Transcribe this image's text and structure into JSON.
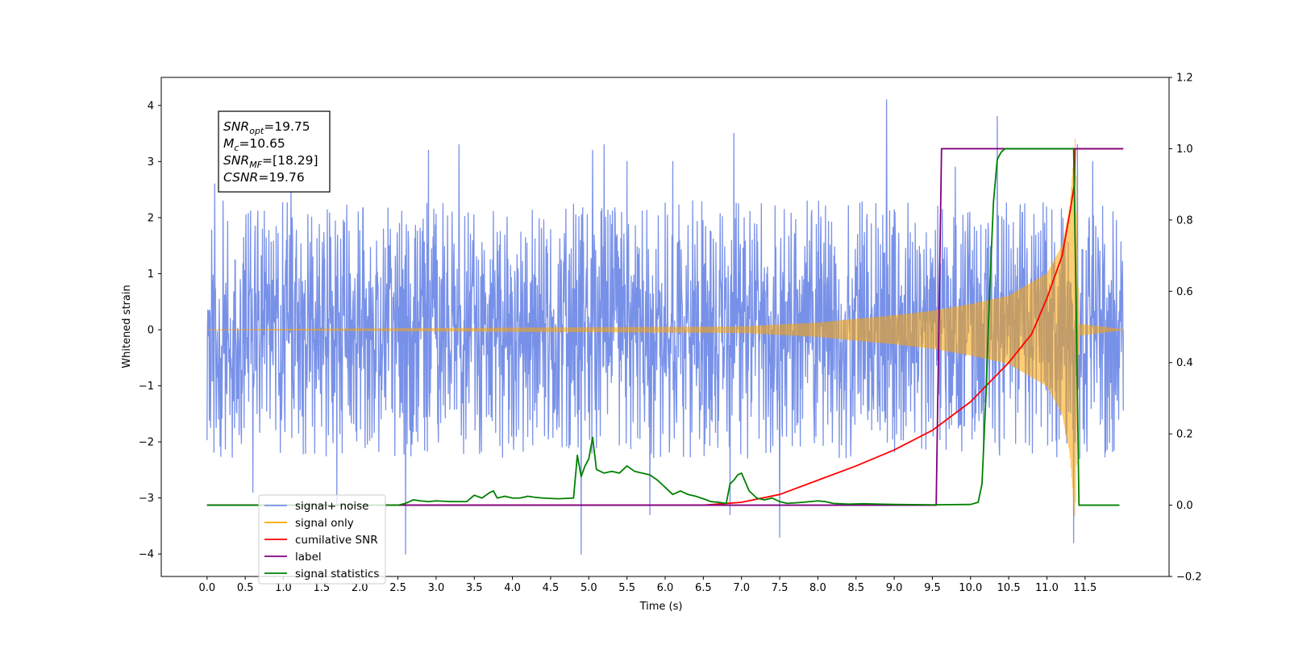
{
  "chart_data": {
    "type": "line",
    "title": "",
    "xlabel": "Time (s)",
    "ylabel": "Whitened strain",
    "ylabel_right": "",
    "xlim": [
      -0.6,
      12.6
    ],
    "ylim": [
      -4.4,
      4.5
    ],
    "ylim_right": [
      -0.2,
      1.2
    ],
    "x_ticks": [
      0.0,
      0.5,
      1.0,
      1.5,
      2.0,
      2.5,
      3.0,
      3.5,
      4.0,
      4.5,
      5.0,
      5.5,
      6.0,
      6.5,
      7.0,
      7.5,
      8.0,
      8.5,
      9.0,
      9.5,
      10.0,
      10.5,
      11.0,
      11.5
    ],
    "x_tick_labels": [
      "0.0",
      "0.5",
      "1.0",
      "1.5",
      "2.0",
      "2.5",
      "3.0",
      "3.5",
      "4.0",
      "4.5",
      "5.0",
      "5.5",
      "6.0",
      "6.5",
      "7.0",
      "7.5",
      "8.0",
      "8.5",
      "9.0",
      "9.5",
      "10.0",
      "10.5",
      "11.0",
      "11.5"
    ],
    "y_ticks": [
      -4,
      -3,
      -2,
      -1,
      0,
      1,
      2,
      3,
      4
    ],
    "y_tick_labels": [
      "−4",
      "−3",
      "−2",
      "−1",
      "0",
      "1",
      "2",
      "3",
      "4"
    ],
    "y_ticks_right": [
      -0.2,
      0.0,
      0.2,
      0.4,
      0.6,
      0.8,
      1.0,
      1.2
    ],
    "y_tick_labels_right": [
      "−0.2",
      "0.0",
      "0.2",
      "0.4",
      "0.6",
      "0.8",
      "1.0",
      "1.2"
    ],
    "grid": false,
    "legend_position": "lower-left",
    "annotation": {
      "lines": [
        {
          "var": "SNR",
          "sub": "opt",
          "value": "=19.75"
        },
        {
          "var": "M",
          "sub": "c",
          "value": "=10.65"
        },
        {
          "var": "SNR",
          "sub": "MF",
          "value": "=[18.29]"
        },
        {
          "var": "CSNR",
          "sub": "",
          "value": "=19.76"
        }
      ]
    },
    "series": [
      {
        "name": "signal+ noise",
        "color": "#7891e8",
        "axis": "left",
        "kind": "noise",
        "x_range": [
          0.0,
          12.0
        ],
        "typical_envelope": 2.2,
        "peaks": [
          {
            "x": 0.1,
            "y": 2.6
          },
          {
            "x": 0.6,
            "y": -2.9
          },
          {
            "x": 1.1,
            "y": 2.6
          },
          {
            "x": 1.7,
            "y": -3.1
          },
          {
            "x": 2.6,
            "y": -4.0
          },
          {
            "x": 2.9,
            "y": 3.2
          },
          {
            "x": 3.3,
            "y": 3.3
          },
          {
            "x": 4.9,
            "y": -4.0
          },
          {
            "x": 5.05,
            "y": 3.2
          },
          {
            "x": 5.2,
            "y": 3.3
          },
          {
            "x": 5.5,
            "y": 3.0
          },
          {
            "x": 5.8,
            "y": -3.3
          },
          {
            "x": 6.1,
            "y": 3.0
          },
          {
            "x": 6.85,
            "y": -3.3
          },
          {
            "x": 6.9,
            "y": 3.5
          },
          {
            "x": 7.5,
            "y": -3.7
          },
          {
            "x": 8.9,
            "y": 4.1
          },
          {
            "x": 9.8,
            "y": 2.9
          },
          {
            "x": 10.35,
            "y": 3.8
          },
          {
            "x": 11.35,
            "y": -3.8
          },
          {
            "x": 11.4,
            "y": 3.3
          },
          {
            "x": 11.6,
            "y": 3.0
          }
        ]
      },
      {
        "name": "signal only",
        "color": "#ffa500",
        "axis": "left",
        "kind": "chirp",
        "amplitude": [
          [
            0.0,
            0.0
          ],
          [
            7.0,
            0.05
          ],
          [
            8.0,
            0.12
          ],
          [
            9.0,
            0.25
          ],
          [
            9.5,
            0.33
          ],
          [
            10.0,
            0.45
          ],
          [
            10.5,
            0.6
          ],
          [
            11.0,
            1.0
          ],
          [
            11.2,
            1.5
          ],
          [
            11.3,
            2.2
          ],
          [
            11.37,
            3.4
          ],
          [
            11.42,
            0.1
          ],
          [
            12.0,
            0.0
          ]
        ]
      },
      {
        "name": "cumilative SNR",
        "color": "#ff0000",
        "axis": "right",
        "x": [
          0.0,
          6.5,
          7.0,
          7.5,
          8.0,
          8.5,
          9.0,
          9.5,
          10.0,
          10.5,
          10.8,
          11.0,
          11.2,
          11.3,
          11.36,
          11.37,
          12.0
        ],
        "y": [
          0.0,
          0.0,
          0.008,
          0.03,
          0.07,
          0.11,
          0.155,
          0.21,
          0.29,
          0.4,
          0.48,
          0.58,
          0.7,
          0.82,
          0.9,
          1.0,
          1.0
        ]
      },
      {
        "name": "label",
        "color": "#800080",
        "axis": "right",
        "x": [
          0.0,
          9.55,
          9.62,
          11.37,
          11.4,
          12.0
        ],
        "y": [
          0.0,
          0.0,
          1.0,
          1.0,
          1.0,
          1.0
        ]
      },
      {
        "name": "signal statistics",
        "color": "#008000",
        "axis": "right",
        "x": [
          0.0,
          2.5,
          2.6,
          2.7,
          2.8,
          2.9,
          3.0,
          3.2,
          3.4,
          3.5,
          3.6,
          3.7,
          3.75,
          3.8,
          3.9,
          4.0,
          4.1,
          4.2,
          4.3,
          4.4,
          4.6,
          4.8,
          4.85,
          4.9,
          4.95,
          5.0,
          5.05,
          5.1,
          5.2,
          5.3,
          5.4,
          5.5,
          5.6,
          5.8,
          5.9,
          6.0,
          6.1,
          6.2,
          6.3,
          6.4,
          6.5,
          6.6,
          6.7,
          6.8,
          6.85,
          6.9,
          6.95,
          7.0,
          7.1,
          7.2,
          7.3,
          7.4,
          7.5,
          7.6,
          7.8,
          8.0,
          8.1,
          8.2,
          8.4,
          8.6,
          8.8,
          9.0,
          9.5,
          10.0,
          10.1,
          10.15,
          10.2,
          10.25,
          10.3,
          10.35,
          10.4,
          10.45,
          10.5,
          10.55,
          11.35,
          11.38,
          11.42,
          11.5,
          11.95
        ],
        "y": [
          0.0,
          0.0,
          0.005,
          0.015,
          0.012,
          0.01,
          0.012,
          0.01,
          0.01,
          0.028,
          0.02,
          0.035,
          0.04,
          0.02,
          0.025,
          0.02,
          0.02,
          0.025,
          0.022,
          0.02,
          0.018,
          0.02,
          0.14,
          0.08,
          0.11,
          0.13,
          0.19,
          0.1,
          0.09,
          0.095,
          0.09,
          0.11,
          0.095,
          0.085,
          0.07,
          0.05,
          0.03,
          0.04,
          0.03,
          0.025,
          0.018,
          0.01,
          0.008,
          0.005,
          0.06,
          0.07,
          0.085,
          0.09,
          0.04,
          0.02,
          0.015,
          0.02,
          0.01,
          0.005,
          0.008,
          0.012,
          0.01,
          0.005,
          0.003,
          0.004,
          0.003,
          0.002,
          0.001,
          0.002,
          0.008,
          0.06,
          0.3,
          0.6,
          0.85,
          0.97,
          0.99,
          1.0,
          1.0,
          1.0,
          1.0,
          0.6,
          0.0,
          0.0,
          0.0
        ]
      }
    ]
  }
}
